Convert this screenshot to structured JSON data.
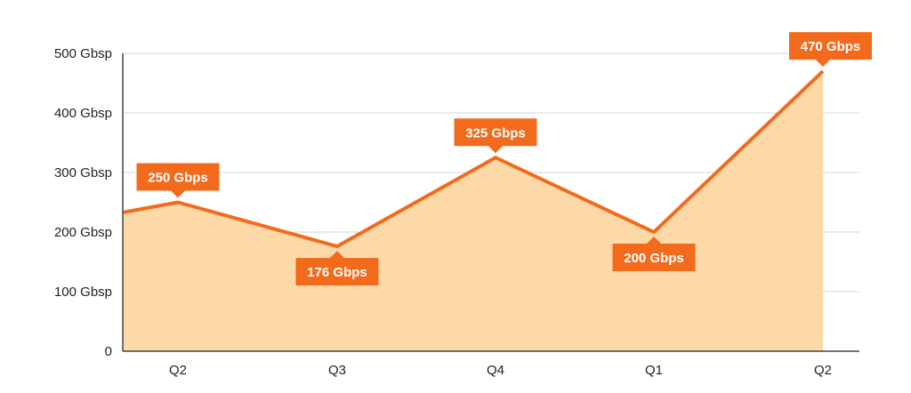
{
  "chart_data": {
    "type": "area",
    "categories": [
      "Q2",
      "Q3",
      "Q4",
      "Q1",
      "Q2"
    ],
    "series": [
      {
        "values": [
          250,
          176,
          325,
          200,
          470
        ],
        "data_labels": [
          "250 Gbps",
          "176 Gbps",
          "325 Gbps",
          "200 Gbps",
          "470 Gbps"
        ]
      }
    ],
    "start_value": 233,
    "ylim": [
      0,
      500
    ],
    "y_ticks": [
      {
        "value": 0,
        "label": "0"
      },
      {
        "value": 100,
        "label": "100 Gbsp"
      },
      {
        "value": 200,
        "label": "200 Gbsp"
      },
      {
        "value": 300,
        "label": "300 Gbsp"
      },
      {
        "value": 400,
        "label": "400 Gbsp"
      },
      {
        "value": 500,
        "label": "500 Gbsp"
      }
    ],
    "label_positions": [
      "above",
      "below",
      "above",
      "below",
      "above"
    ],
    "grid": true,
    "colors": {
      "line": "#f26b1d",
      "fill": "#fdd9a8",
      "label_bg": "#f26b1d",
      "grid": "#d6d6d6",
      "axis": "#444444"
    }
  }
}
